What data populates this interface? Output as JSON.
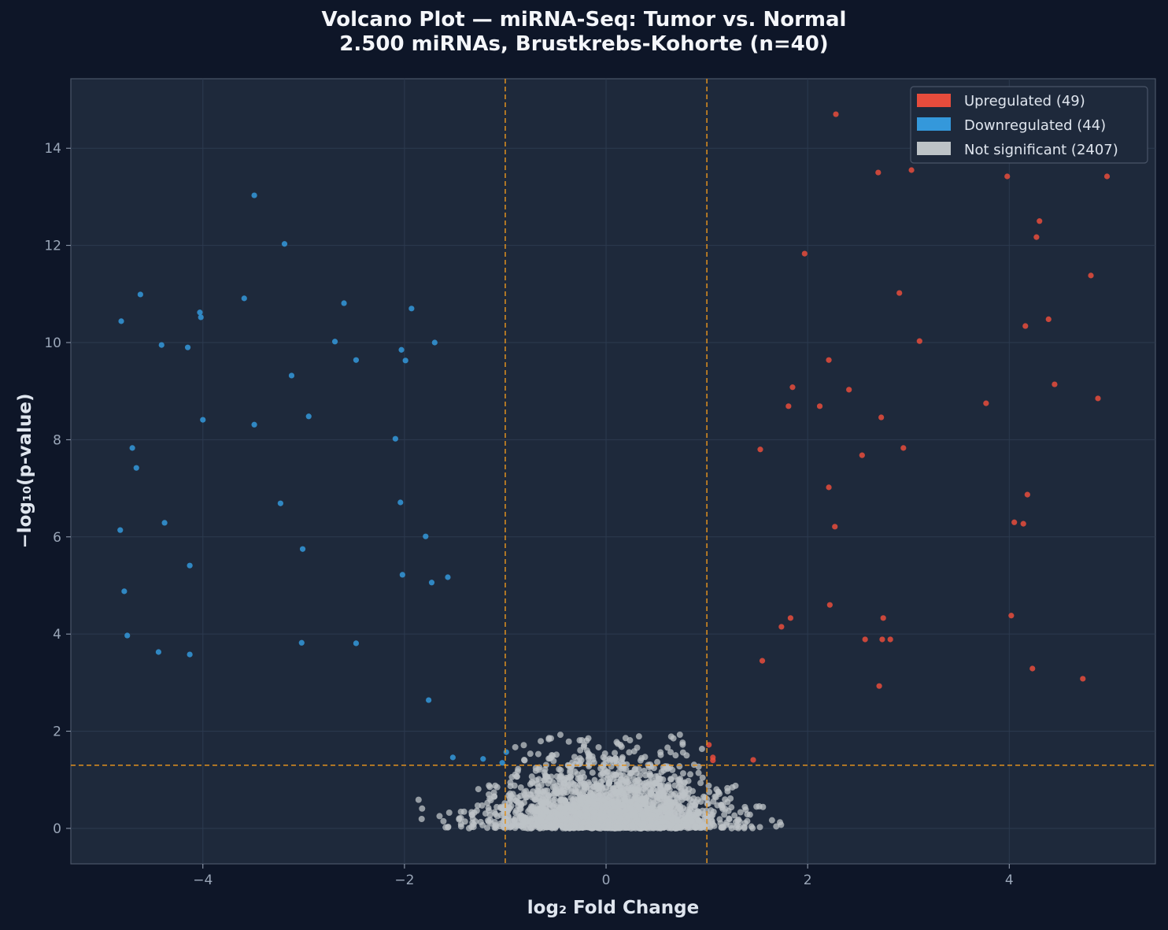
{
  "chart_data": {
    "type": "scatter",
    "title_line1": "Volcano Plot — miRNA-Seq: Tumor vs. Normal",
    "title_line2": "2.500 miRNAs, Brustkrebs-Kohorte (n=40)",
    "xlabel": "log₂ Fold Change",
    "ylabel": "−log₁₀(p-value)",
    "xlim": [
      -5.31,
      5.45
    ],
    "ylim": [
      -0.73,
      15.43
    ],
    "xticks": [
      -4,
      -2,
      0,
      2,
      4
    ],
    "xtick_labels": [
      "−4",
      "−2",
      "0",
      "2",
      "4"
    ],
    "yticks": [
      0,
      2,
      4,
      6,
      8,
      10,
      12,
      14
    ],
    "ytick_labels": [
      "0",
      "2",
      "4",
      "6",
      "8",
      "10",
      "12",
      "14"
    ],
    "grid": true,
    "legend_position": "top-right",
    "thresholds": {
      "log2fc": [
        -1,
        1
      ],
      "neg_log10_p": 1.3
    },
    "colors": {
      "up": "#e74c3c",
      "down": "#3498db",
      "ns": "#bdc3c7",
      "threshold": "#e0901e",
      "background": "#0e1628",
      "plot_background": "#1e293b"
    },
    "series": [
      {
        "name": "Upregulated (49)",
        "color": "#e74c3c",
        "points": [
          [
            2.28,
            14.7
          ],
          [
            3.27,
            14.25
          ],
          [
            3.6,
            14.36
          ],
          [
            3.82,
            14.0
          ],
          [
            2.7,
            13.5
          ],
          [
            3.03,
            13.55
          ],
          [
            3.98,
            13.42
          ],
          [
            4.97,
            13.42
          ],
          [
            4.3,
            12.5
          ],
          [
            4.27,
            12.17
          ],
          [
            1.97,
            11.83
          ],
          [
            4.81,
            11.38
          ],
          [
            2.91,
            11.02
          ],
          [
            4.39,
            10.48
          ],
          [
            4.16,
            10.34
          ],
          [
            3.11,
            10.03
          ],
          [
            2.21,
            9.64
          ],
          [
            4.45,
            9.14
          ],
          [
            1.85,
            9.08
          ],
          [
            2.41,
            9.03
          ],
          [
            1.81,
            8.69
          ],
          [
            2.12,
            8.69
          ],
          [
            3.77,
            8.75
          ],
          [
            4.88,
            8.85
          ],
          [
            2.73,
            8.46
          ],
          [
            1.53,
            7.8
          ],
          [
            2.95,
            7.83
          ],
          [
            2.54,
            7.68
          ],
          [
            2.21,
            7.02
          ],
          [
            4.18,
            6.87
          ],
          [
            4.05,
            6.3
          ],
          [
            4.14,
            6.27
          ],
          [
            2.27,
            6.21
          ],
          [
            2.22,
            4.6
          ],
          [
            1.83,
            4.33
          ],
          [
            1.74,
            4.15
          ],
          [
            2.75,
            4.33
          ],
          [
            4.02,
            4.38
          ],
          [
            2.57,
            3.89
          ],
          [
            2.74,
            3.89
          ],
          [
            2.82,
            3.89
          ],
          [
            1.55,
            3.45
          ],
          [
            4.23,
            3.29
          ],
          [
            4.73,
            3.08
          ],
          [
            2.71,
            2.93
          ],
          [
            1.02,
            1.72
          ],
          [
            1.06,
            1.46
          ],
          [
            1.06,
            1.4
          ],
          [
            1.46,
            1.41
          ]
        ]
      },
      {
        "name": "Downregulated (44)",
        "color": "#3498db",
        "points": [
          [
            -3.49,
            13.03
          ],
          [
            -3.19,
            12.03
          ],
          [
            -4.62,
            10.99
          ],
          [
            -4.81,
            10.44
          ],
          [
            -4.03,
            10.62
          ],
          [
            -4.02,
            10.52
          ],
          [
            -3.59,
            10.91
          ],
          [
            -2.6,
            10.81
          ],
          [
            -1.93,
            10.7
          ],
          [
            -4.41,
            9.95
          ],
          [
            -4.15,
            9.9
          ],
          [
            -2.69,
            10.02
          ],
          [
            -2.03,
            9.85
          ],
          [
            -1.7,
            10.0
          ],
          [
            -2.48,
            9.64
          ],
          [
            -1.99,
            9.63
          ],
          [
            -3.12,
            9.32
          ],
          [
            -4.0,
            8.41
          ],
          [
            -2.95,
            8.48
          ],
          [
            -3.49,
            8.31
          ],
          [
            -2.09,
            8.02
          ],
          [
            -4.7,
            7.83
          ],
          [
            -4.66,
            7.42
          ],
          [
            -3.23,
            6.69
          ],
          [
            -2.04,
            6.71
          ],
          [
            -4.38,
            6.29
          ],
          [
            -4.82,
            6.14
          ],
          [
            -1.79,
            6.01
          ],
          [
            -3.01,
            5.75
          ],
          [
            -4.13,
            5.41
          ],
          [
            -2.02,
            5.22
          ],
          [
            -1.57,
            5.17
          ],
          [
            -1.73,
            5.06
          ],
          [
            -4.78,
            4.88
          ],
          [
            -4.75,
            3.97
          ],
          [
            -4.44,
            3.63
          ],
          [
            -4.13,
            3.58
          ],
          [
            -3.02,
            3.82
          ],
          [
            -2.48,
            3.81
          ],
          [
            -1.76,
            2.64
          ],
          [
            -1.52,
            1.46
          ],
          [
            -1.22,
            1.43
          ],
          [
            -0.99,
            1.57
          ],
          [
            -1.03,
            1.35
          ]
        ]
      },
      {
        "name": "Not significant (2407)",
        "color": "#bdc3c7",
        "count": 2407
      }
    ]
  }
}
